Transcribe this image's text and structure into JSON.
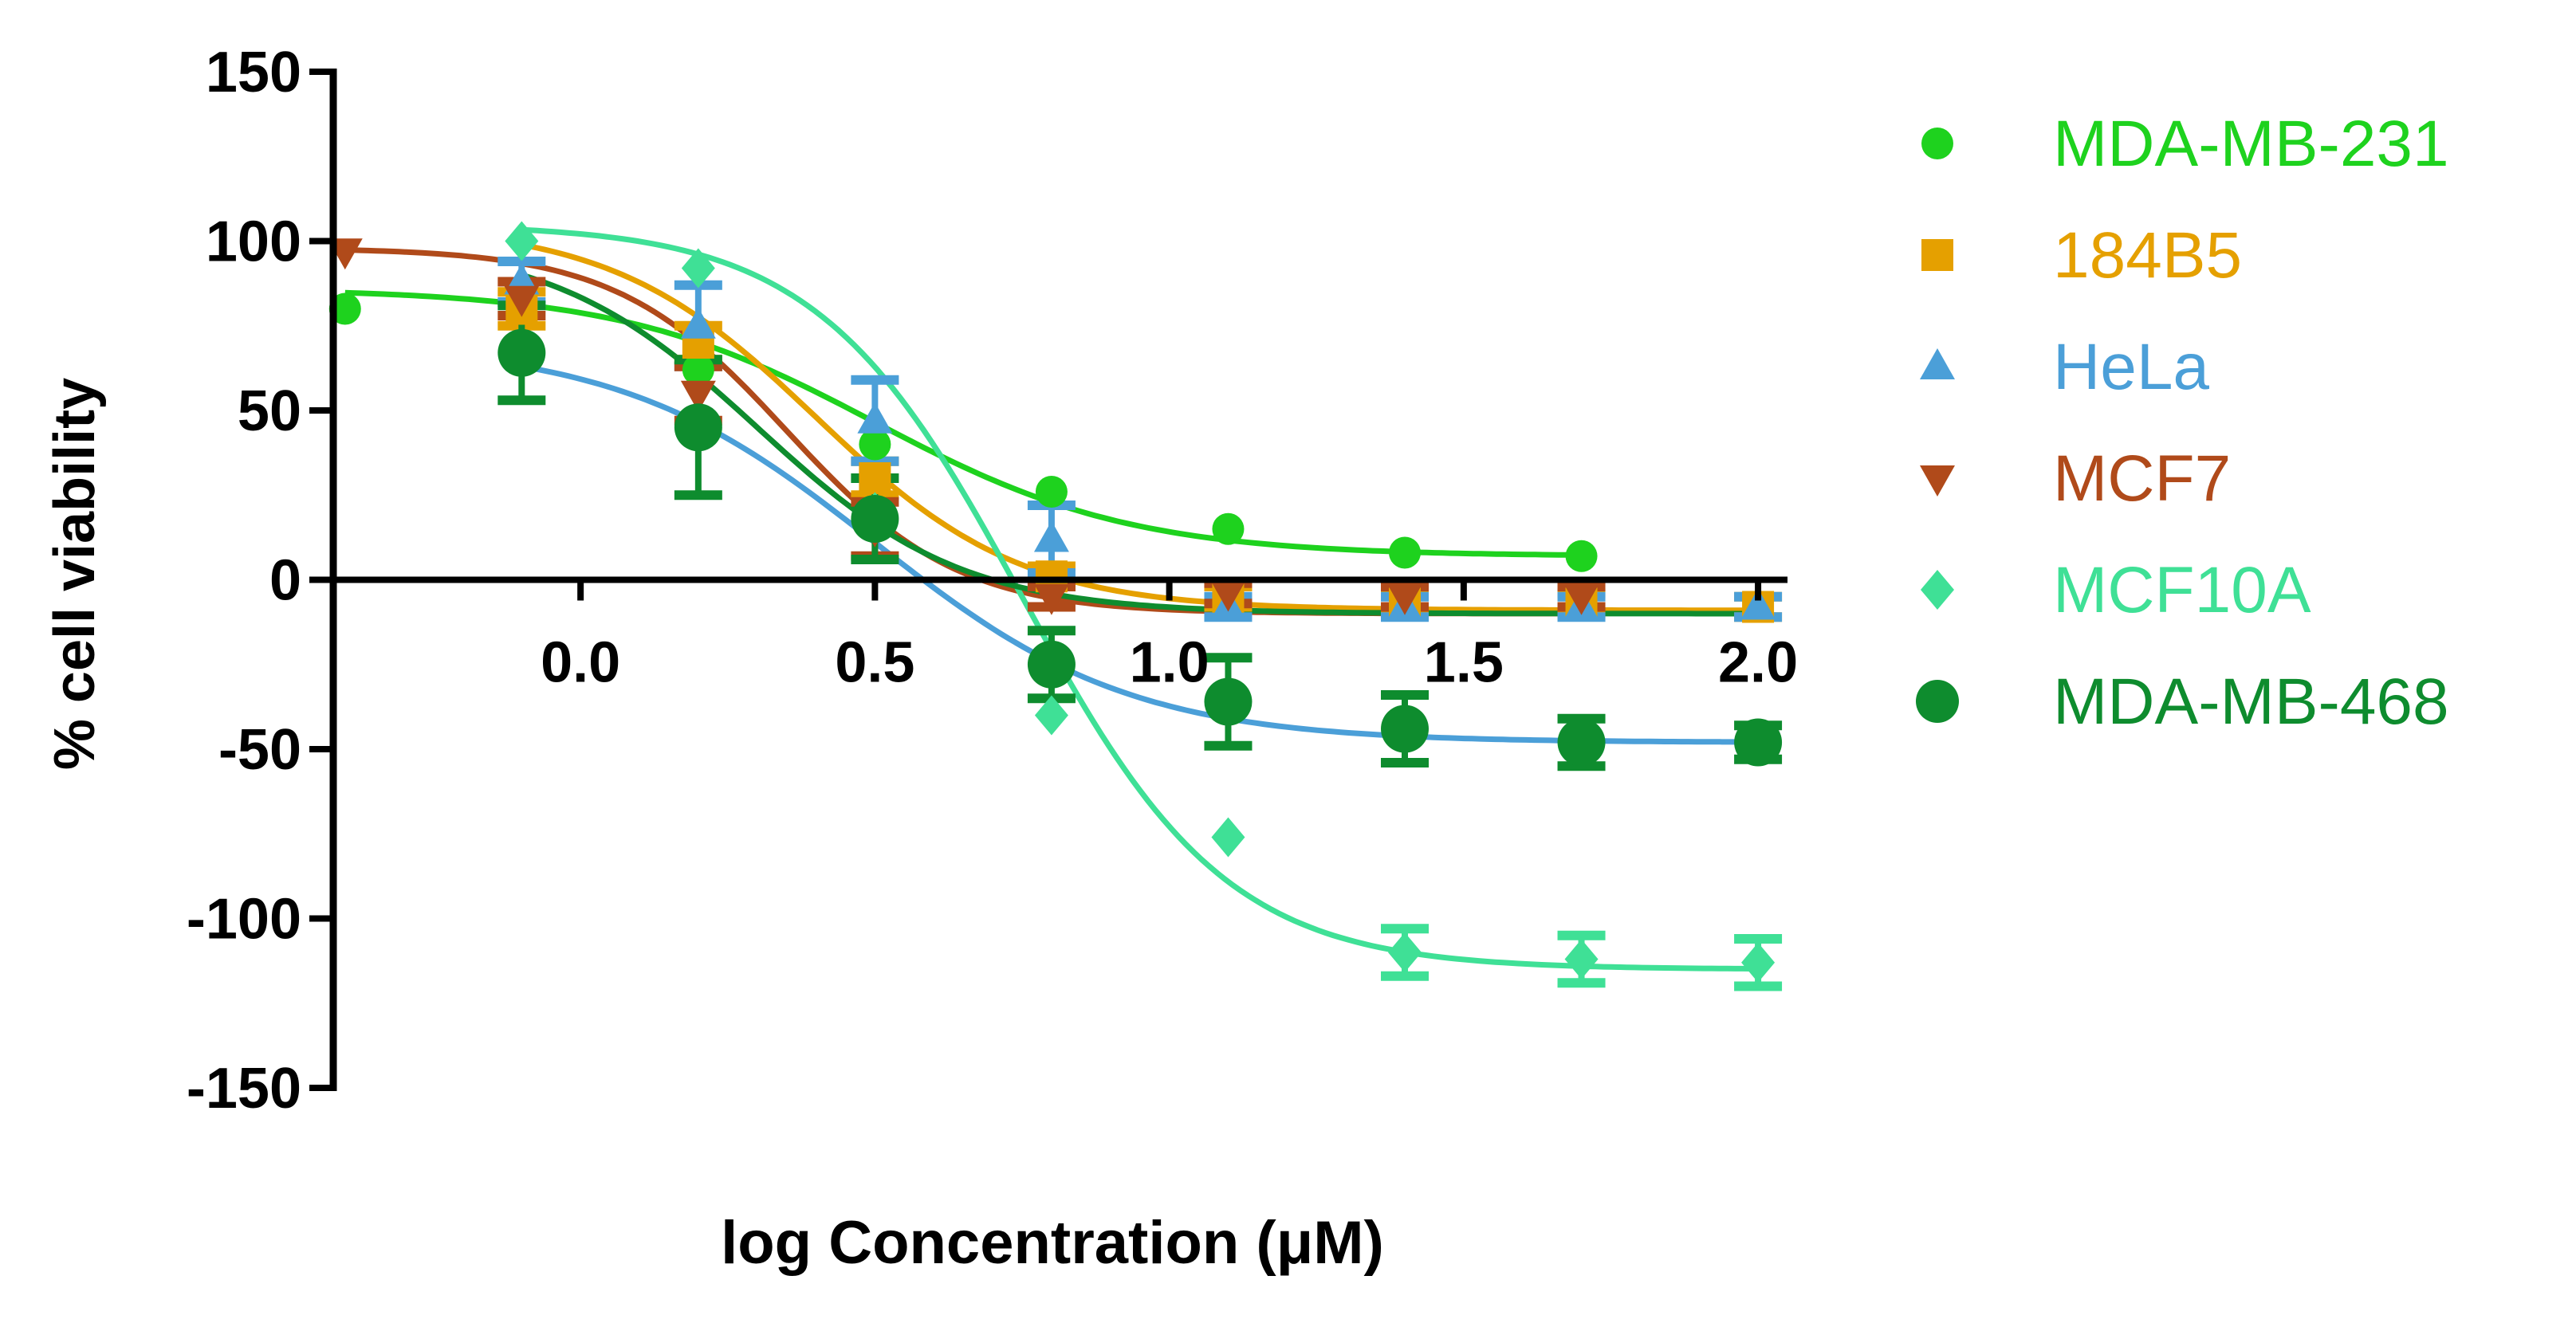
{
  "chart_data": {
    "type": "scatter",
    "title": "",
    "xlabel": "log Concentration  (μM)",
    "ylabel": "% cell viability",
    "xlim": [
      -0.42,
      2.05
    ],
    "ylim": [
      -150,
      150
    ],
    "x_ticks": [
      0.0,
      0.5,
      1.0,
      1.5,
      2.0
    ],
    "x_tick_labels": [
      "0.0",
      "0.5",
      "1.0",
      "1.5",
      "2.0"
    ],
    "y_ticks": [
      150,
      100,
      50,
      0,
      -50,
      -100,
      -150
    ],
    "y_tick_labels": [
      "150",
      "100",
      "50",
      "0",
      "-50",
      "-100",
      "-150"
    ],
    "grid": false,
    "legend_position": "right",
    "series": [
      {
        "name": "MDA-MB-231",
        "color": "#1ed21e",
        "marker": "circle",
        "x": [
          -0.4,
          -0.1,
          0.2,
          0.5,
          0.8,
          1.1,
          1.4,
          1.7
        ],
        "y": [
          80,
          82,
          62,
          40,
          26,
          15,
          8,
          7
        ],
        "err": [
          0,
          0,
          0,
          0,
          0,
          0,
          0,
          0
        ],
        "fit": {
          "top": 86,
          "bottom": 7,
          "logIC50": 0.5,
          "hill": 2.0
        }
      },
      {
        "name": "184B5",
        "color": "#e5a000",
        "marker": "square",
        "x": [
          -0.1,
          0.2,
          0.5,
          0.8,
          1.1,
          1.4,
          1.7,
          2.0
        ],
        "y": [
          80,
          70,
          30,
          1,
          -5,
          -7,
          -7,
          -8
        ],
        "err": [
          5,
          5,
          5,
          3,
          3,
          3,
          3,
          3
        ],
        "fit": {
          "top": 105,
          "bottom": -9,
          "logIC50": 0.4,
          "hill": 2.5
        }
      },
      {
        "name": "HeLa",
        "color": "#4b9fd8",
        "marker": "triangle-up",
        "x": [
          -0.1,
          0.2,
          0.5,
          0.8,
          1.1,
          1.4,
          1.7,
          2.0
        ],
        "y": [
          88,
          75,
          47,
          12,
          -8,
          -8,
          -8,
          -8
        ],
        "err": [
          6,
          12,
          12,
          10,
          3,
          3,
          3,
          3
        ],
        "fit": {
          "top": 70,
          "bottom": -48,
          "logIC50": 0.5,
          "hill": 2.0
        }
      },
      {
        "name": "MCF7",
        "color": "#b04a1a",
        "marker": "triangle-down",
        "x": [
          -0.4,
          -0.1,
          0.2,
          0.5,
          0.8,
          1.1,
          1.4,
          1.7
        ],
        "y": [
          97,
          83,
          55,
          15,
          -5,
          -4,
          -5,
          -5
        ],
        "err": [
          0,
          5,
          8,
          8,
          3,
          3,
          3,
          3
        ],
        "fit": {
          "top": 98,
          "bottom": -10,
          "logIC50": 0.35,
          "hill": 3.0
        }
      },
      {
        "name": "MCF10A",
        "color": "#3fe096",
        "marker": "diamond",
        "x": [
          -0.1,
          0.2,
          0.5,
          0.8,
          1.1,
          1.4,
          1.7,
          2.0
        ],
        "y": [
          100,
          92,
          20,
          -40,
          -76,
          -110,
          -112,
          -113
        ],
        "err": [
          0,
          0,
          0,
          0,
          0,
          7,
          7,
          7
        ],
        "fit": {
          "top": 105,
          "bottom": -115,
          "logIC50": 0.75,
          "hill": 2.5
        }
      },
      {
        "name": "MDA-MB-468",
        "color": "#0e8c2e",
        "marker": "circle",
        "x": [
          -0.1,
          0.2,
          0.5,
          0.8,
          1.1,
          1.4,
          1.7,
          2.0
        ],
        "y": [
          67,
          45,
          18,
          -25,
          -36,
          -44,
          -48,
          -48
        ],
        "err": [
          14,
          20,
          12,
          10,
          13,
          10,
          7,
          5
        ],
        "fit": {
          "top": 100,
          "bottom": -10,
          "logIC50": 0.3,
          "hill": 2.5
        }
      }
    ]
  }
}
